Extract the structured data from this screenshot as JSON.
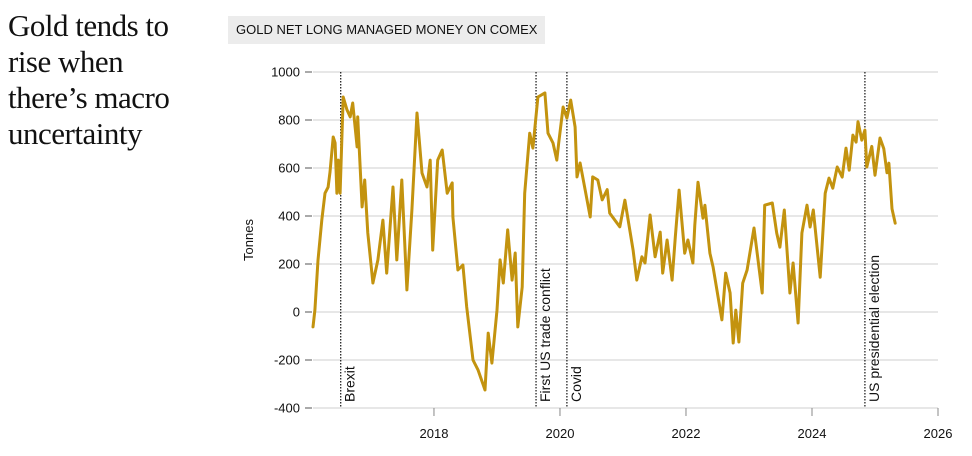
{
  "headline": "Gold tends to rise when there’s macro uncertainty",
  "chart_data": {
    "type": "line",
    "title": "GOLD NET LONG MANAGED MONEY ON COMEX",
    "xlabel": "",
    "ylabel": "Tonnes",
    "xlim": [
      2016.08,
      2026
    ],
    "ylim": [
      -400,
      1000
    ],
    "yticks": [
      1000,
      800,
      600,
      400,
      200,
      0,
      -200,
      -400
    ],
    "ytick_labels": [
      "1000",
      "800",
      "600",
      "400",
      "200",
      "0",
      "-200",
      "-400"
    ],
    "xticks": [
      2018,
      2020,
      2022,
      2024,
      2026
    ],
    "xtick_labels": [
      "2018",
      "2020",
      "2022",
      "2024",
      "2026"
    ],
    "grid": true,
    "line_color": "#c3930f",
    "events": [
      {
        "x": 2016.52,
        "label": "Brexit"
      },
      {
        "x": 2019.62,
        "label": "First US trade conflict"
      },
      {
        "x": 2020.11,
        "label": "Covid"
      },
      {
        "x": 2024.84,
        "label": "US presidential election"
      }
    ],
    "series": [
      {
        "name": "Net long managed money",
        "x": [
          2016.08,
          2016.11,
          2016.16,
          2016.22,
          2016.27,
          2016.32,
          2016.35,
          2016.4,
          2016.43,
          2016.46,
          2016.48,
          2016.51,
          2016.56,
          2016.62,
          2016.67,
          2016.71,
          2016.78,
          2016.79,
          2016.86,
          2016.9,
          2016.95,
          2017.03,
          2017.11,
          2017.19,
          2017.25,
          2017.35,
          2017.41,
          2017.49,
          2017.57,
          2017.65,
          2017.73,
          2017.81,
          2017.89,
          2017.94,
          2017.98,
          2018.06,
          2018.13,
          2018.21,
          2018.29,
          2018.3,
          2018.38,
          2018.46,
          2018.52,
          2018.62,
          2018.7,
          2018.81,
          2018.86,
          2018.92,
          2019.0,
          2019.05,
          2019.1,
          2019.17,
          2019.24,
          2019.29,
          2019.33,
          2019.4,
          2019.44,
          2019.52,
          2019.57,
          2019.65,
          2019.76,
          2019.81,
          2019.89,
          2019.95,
          2019.98,
          2020.05,
          2020.11,
          2020.17,
          2020.24,
          2020.27,
          2020.32,
          2020.4,
          2020.48,
          2020.52,
          2020.6,
          2020.67,
          2020.75,
          2020.79,
          2020.95,
          2021.03,
          2021.16,
          2021.22,
          2021.3,
          2021.35,
          2021.43,
          2021.51,
          2021.59,
          2021.63,
          2021.7,
          2021.78,
          2021.83,
          2021.89,
          2021.98,
          2022.03,
          2022.11,
          2022.14,
          2022.19,
          2022.27,
          2022.3,
          2022.38,
          2022.43,
          2022.57,
          2022.63,
          2022.7,
          2022.75,
          2022.79,
          2022.84,
          2022.9,
          2022.97,
          2023.08,
          2023.21,
          2023.25,
          2023.37,
          2023.44,
          2023.49,
          2023.56,
          2023.65,
          2023.7,
          2023.78,
          2023.84,
          2023.92,
          2023.97,
          2024.02,
          2024.13,
          2024.21,
          2024.27,
          2024.33,
          2024.4,
          2024.48,
          2024.54,
          2024.59,
          2024.65,
          2024.7,
          2024.73,
          2024.79,
          2024.84,
          2024.87,
          2024.95,
          2025.0,
          2025.08,
          2025.14,
          2025.19,
          2025.22,
          2025.27,
          2025.32
        ],
        "values": [
          -62,
          8,
          216,
          383,
          495,
          520,
          583,
          729,
          704,
          495,
          633,
          495,
          896,
          842,
          813,
          871,
          688,
          813,
          438,
          550,
          329,
          121,
          217,
          383,
          162,
          521,
          217,
          550,
          92,
          425,
          829,
          579,
          521,
          633,
          258,
          633,
          675,
          495,
          538,
          396,
          175,
          196,
          21,
          -200,
          -242,
          -325,
          -88,
          -213,
          8,
          217,
          121,
          342,
          133,
          246,
          -62,
          104,
          495,
          745,
          683,
          896,
          913,
          745,
          704,
          633,
          704,
          854,
          808,
          883,
          771,
          563,
          621,
          508,
          396,
          563,
          550,
          467,
          510,
          412,
          355,
          466,
          258,
          133,
          230,
          204,
          404,
          230,
          333,
          162,
          300,
          133,
          312,
          508,
          245,
          300,
          204,
          362,
          541,
          391,
          445,
          245,
          187,
          -33,
          162,
          79,
          -129,
          8,
          -125,
          120,
          175,
          350,
          79,
          445,
          454,
          329,
          270,
          425,
          79,
          204,
          -46,
          329,
          445,
          354,
          425,
          145,
          495,
          558,
          516,
          604,
          562,
          683,
          591,
          737,
          708,
          793,
          716,
          758,
          604,
          690,
          570,
          725,
          680,
          580,
          620,
          430,
          370
        ]
      }
    ]
  }
}
